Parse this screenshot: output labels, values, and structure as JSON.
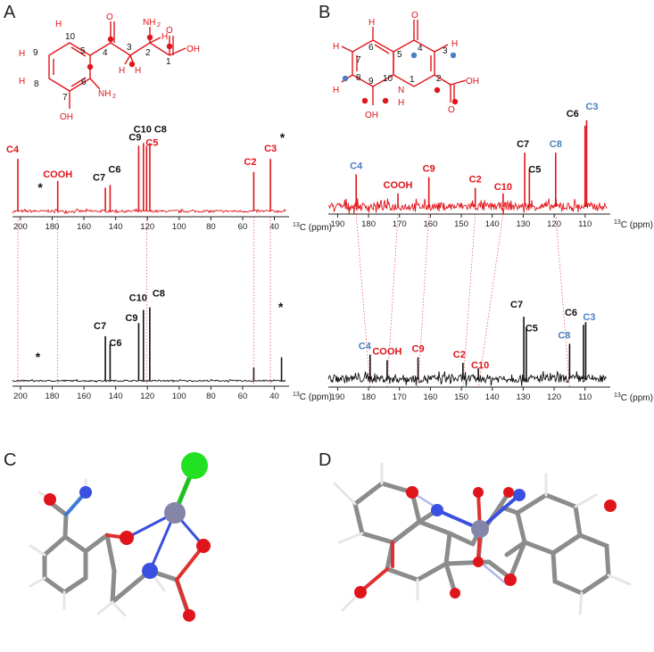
{
  "colors": {
    "red": "#e0141b",
    "blue": "#4a7fc1",
    "black": "#111111",
    "grey": "#8c8c8c",
    "white_atom": "#e6e6e6",
    "cl": "#22e022",
    "metal": "#8585a8"
  },
  "panel_labels": {
    "A": "A",
    "B": "B",
    "C": "C",
    "D": "D"
  },
  "axis_title_sup": "13",
  "axis_title": "C (ppm)",
  "star": "*",
  "molecule_A": {
    "atoms": {
      "o_keto": "O",
      "nh2_top": "NH",
      "nh2_top_sub": "2",
      "h_top": "H",
      "oh_acid": "OH",
      "o_acid": "O",
      "h9": "H",
      "h8": "H",
      "oh7": "OH",
      "nh2_ring": "NH",
      "nh2_ring_sub": "2",
      "h3a": "H",
      "h3b": "H",
      "h_ch": "H"
    },
    "numbers": {
      "n1": "1",
      "n2": "2",
      "n3": "3",
      "n4": "4",
      "n5": "5",
      "n6": "6",
      "n7": "7",
      "n8": "8",
      "n9": "9",
      "n10": "10"
    }
  },
  "molecule_B": {
    "atoms": {
      "o4": "O",
      "h3": "H",
      "h6": "H",
      "h7": "H",
      "h8": "H",
      "n1": "N",
      "h_n": "H",
      "oh9": "OH",
      "oh_acid": "OH",
      "o_acid": "O"
    },
    "numbers": {
      "n1": "1",
      "n2": "2",
      "n3": "3",
      "n4": "4",
      "n5": "5",
      "n6": "6",
      "n7": "7",
      "n8": "8",
      "n9": "9",
      "n10": "10"
    }
  },
  "chart_data": [
    {
      "type": "line",
      "panel": "A-top",
      "color": "#e0141b",
      "xlim": [
        205,
        33
      ],
      "ticks": [
        200,
        180,
        160,
        140,
        120,
        100,
        80,
        60,
        40
      ],
      "tick_labels": [
        "200",
        "180",
        "160",
        "140",
        "120",
        "100",
        "80",
        "60",
        "40"
      ],
      "peaks": [
        {
          "label": "C4",
          "ppm": 201.6,
          "height": 1.0,
          "color": "#e0141b"
        },
        {
          "label": "COOH",
          "ppm": 176.5,
          "height": 0.58,
          "color": "#e0141b",
          "nolabelline": true
        },
        {
          "label": "C7",
          "ppm": 146.5,
          "height": 0.45,
          "color": "#111111"
        },
        {
          "label": "C6",
          "ppm": 143.5,
          "height": 0.5,
          "color": "#111111"
        },
        {
          "label": "C9",
          "ppm": 125.5,
          "height": 1.25,
          "color": "#111111"
        },
        {
          "label": "C10",
          "ppm": 122.5,
          "height": 1.3,
          "color": "#111111"
        },
        {
          "label": "C5",
          "ppm": 120.5,
          "height": 1.25,
          "color": "#e0141b"
        },
        {
          "label": "C8",
          "ppm": 118.5,
          "height": 1.3,
          "color": "#111111"
        },
        {
          "label": "C2",
          "ppm": 53.0,
          "height": 0.75,
          "color": "#e0141b"
        },
        {
          "label": "C3",
          "ppm": 42.5,
          "height": 1.0,
          "color": "#e0141b"
        }
      ],
      "stars": [
        {
          "ppm": 187.5
        },
        {
          "ppm": 35.0
        }
      ]
    },
    {
      "type": "line",
      "panel": "A-bottom",
      "color": "#111111",
      "xlim": [
        205,
        33
      ],
      "ticks": [
        200,
        180,
        160,
        140,
        120,
        100,
        80,
        60,
        40
      ],
      "tick_labels": [
        "200",
        "180",
        "160",
        "140",
        "120",
        "100",
        "80",
        "60",
        "40"
      ],
      "peaks": [
        {
          "label": "C7",
          "ppm": 146.5,
          "height": 0.85,
          "color": "#111111"
        },
        {
          "label": "C6",
          "ppm": 143.5,
          "height": 0.7,
          "color": "#111111"
        },
        {
          "label": "C9",
          "ppm": 125.5,
          "height": 1.1,
          "color": "#111111"
        },
        {
          "label": "C10",
          "ppm": 122.5,
          "height": 1.35,
          "color": "#111111"
        },
        {
          "label": "C8",
          "ppm": 118.5,
          "height": 1.4,
          "color": "#111111"
        },
        {
          "label": "",
          "ppm": 53.0,
          "height": 0.25,
          "color": "#111111"
        },
        {
          "label": "",
          "ppm": 35.5,
          "height": 0.45,
          "color": "#111111"
        }
      ],
      "stars": [
        {
          "ppm": 189.0
        },
        {
          "ppm": 36.0
        }
      ]
    },
    {
      "type": "line",
      "panel": "B-top",
      "color": "#e0141b",
      "xlim": [
        193,
        103
      ],
      "ticks": [
        190,
        180,
        170,
        160,
        150,
        140,
        130,
        120,
        110
      ],
      "tick_labels": [
        "190",
        "180",
        "170",
        "160",
        "150",
        "140",
        "130",
        "120",
        "110"
      ],
      "peaks": [
        {
          "label": "C4",
          "ppm": 184.0,
          "height": 0.6,
          "color": "#4a7fc1"
        },
        {
          "label": "COOH",
          "ppm": 170.5,
          "height": 0.25,
          "color": "#e0141b"
        },
        {
          "label": "C9",
          "ppm": 160.5,
          "height": 0.55,
          "color": "#e0141b"
        },
        {
          "label": "C2",
          "ppm": 145.5,
          "height": 0.35,
          "color": "#e0141b"
        },
        {
          "label": "C10",
          "ppm": 136.5,
          "height": 0.25,
          "color": "#e0141b"
        },
        {
          "label": "C7",
          "ppm": 129.5,
          "height": 1.0,
          "color": "#111111"
        },
        {
          "label": "C5",
          "ppm": 128.0,
          "height": 0.7,
          "color": "#111111"
        },
        {
          "label": "C8",
          "ppm": 119.5,
          "height": 1.0,
          "color": "#4a7fc1"
        },
        {
          "label": "C6",
          "ppm": 110.0,
          "height": 1.5,
          "color": "#111111"
        },
        {
          "label": "C3",
          "ppm": 109.5,
          "height": 1.6,
          "color": "#4a7fc1"
        }
      ],
      "stars": []
    },
    {
      "type": "line",
      "panel": "B-bottom",
      "color": "#111111",
      "xlim": [
        193,
        103
      ],
      "ticks": [
        190,
        180,
        170,
        160,
        150,
        140,
        130,
        120,
        110
      ],
      "tick_labels": [
        "190",
        "180",
        "170",
        "160",
        "150",
        "140",
        "130",
        "120",
        "110"
      ],
      "peaks": [
        {
          "label": "C4",
          "ppm": 179.5,
          "height": 0.45,
          "color": "#4a7fc1"
        },
        {
          "label": "COOH",
          "ppm": 174.0,
          "height": 0.35,
          "color": "#e0141b"
        },
        {
          "label": "C9",
          "ppm": 164.0,
          "height": 0.4,
          "color": "#e0141b"
        },
        {
          "label": "C2",
          "ppm": 149.5,
          "height": 0.3,
          "color": "#e0141b"
        },
        {
          "label": "C10",
          "ppm": 144.5,
          "height": 0.2,
          "color": "#e0141b"
        },
        {
          "label": "C7",
          "ppm": 129.8,
          "height": 1.15,
          "color": "#111111"
        },
        {
          "label": "C5",
          "ppm": 129.0,
          "height": 0.95,
          "color": "#111111"
        },
        {
          "label": "C8",
          "ppm": 115.0,
          "height": 0.65,
          "color": "#4a7fc1"
        },
        {
          "label": "C6",
          "ppm": 110.5,
          "height": 1.0,
          "color": "#111111"
        },
        {
          "label": "C3",
          "ppm": 109.8,
          "height": 1.05,
          "color": "#4a7fc1"
        }
      ],
      "stars": []
    }
  ],
  "correlations": {
    "A": [
      201.6,
      176.5,
      120.5,
      53.0,
      42.5
    ],
    "B": [
      [
        184.0,
        179.5
      ],
      [
        170.5,
        174.0
      ],
      [
        160.5,
        164.0
      ],
      [
        145.5,
        149.5
      ],
      [
        136.5,
        144.5
      ],
      [
        119.5,
        115.0
      ]
    ]
  }
}
